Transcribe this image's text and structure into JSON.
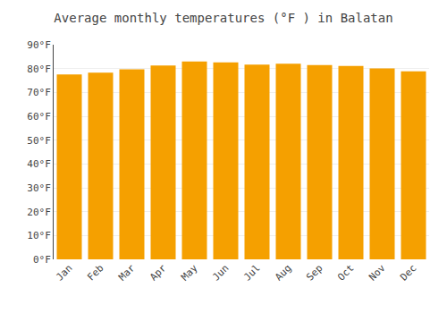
{
  "chart_data": {
    "type": "bar",
    "title": "Average monthly temperatures (°F ) in Balatan",
    "categories": [
      "Jan",
      "Feb",
      "Mar",
      "Apr",
      "May",
      "Jun",
      "Jul",
      "Aug",
      "Sep",
      "Oct",
      "Nov",
      "Dec"
    ],
    "values": [
      77.5,
      78.3,
      79.7,
      81.3,
      83.0,
      82.6,
      81.7,
      82.0,
      81.5,
      81.1,
      80.1,
      78.8
    ],
    "color": "#F5A000",
    "ylim": [
      0,
      90
    ],
    "yticks": [
      {
        "value": 0,
        "label": "0°F"
      },
      {
        "value": 10,
        "label": "10°F"
      },
      {
        "value": 20,
        "label": "20°F"
      },
      {
        "value": 30,
        "label": "30°F"
      },
      {
        "value": 40,
        "label": "40°F"
      },
      {
        "value": 50,
        "label": "50°F"
      },
      {
        "value": 60,
        "label": "60°F"
      },
      {
        "value": 70,
        "label": "70°F"
      },
      {
        "value": 80,
        "label": "80°F"
      },
      {
        "value": 90,
        "label": "90°F"
      }
    ],
    "grid": true
  }
}
